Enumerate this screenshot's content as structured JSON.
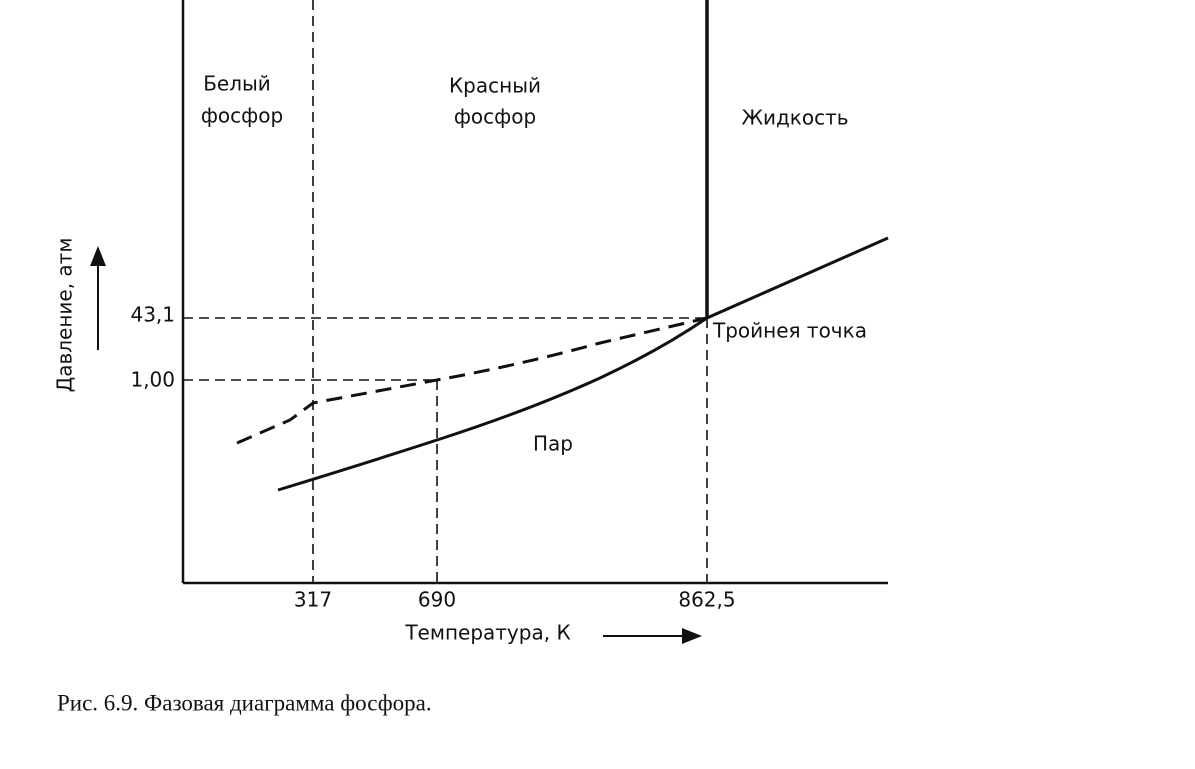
{
  "regions": {
    "white_phosphorus": [
      "Белый",
      "фосфор"
    ],
    "red_phosphorus": [
      "Красный",
      "фосфор"
    ],
    "liquid": "Жидкость",
    "vapor": "Пар"
  },
  "annotations": {
    "triple_point": "Тройнея точка"
  },
  "axes": {
    "y_label": "Давление, атм",
    "x_label": "Температура, К",
    "y_ticks": [
      "43,1",
      "1,00"
    ],
    "x_ticks": [
      "317",
      "690",
      "862,5"
    ]
  },
  "caption": "Рис. 6.9. Фазовая диаграмма фосфора."
}
